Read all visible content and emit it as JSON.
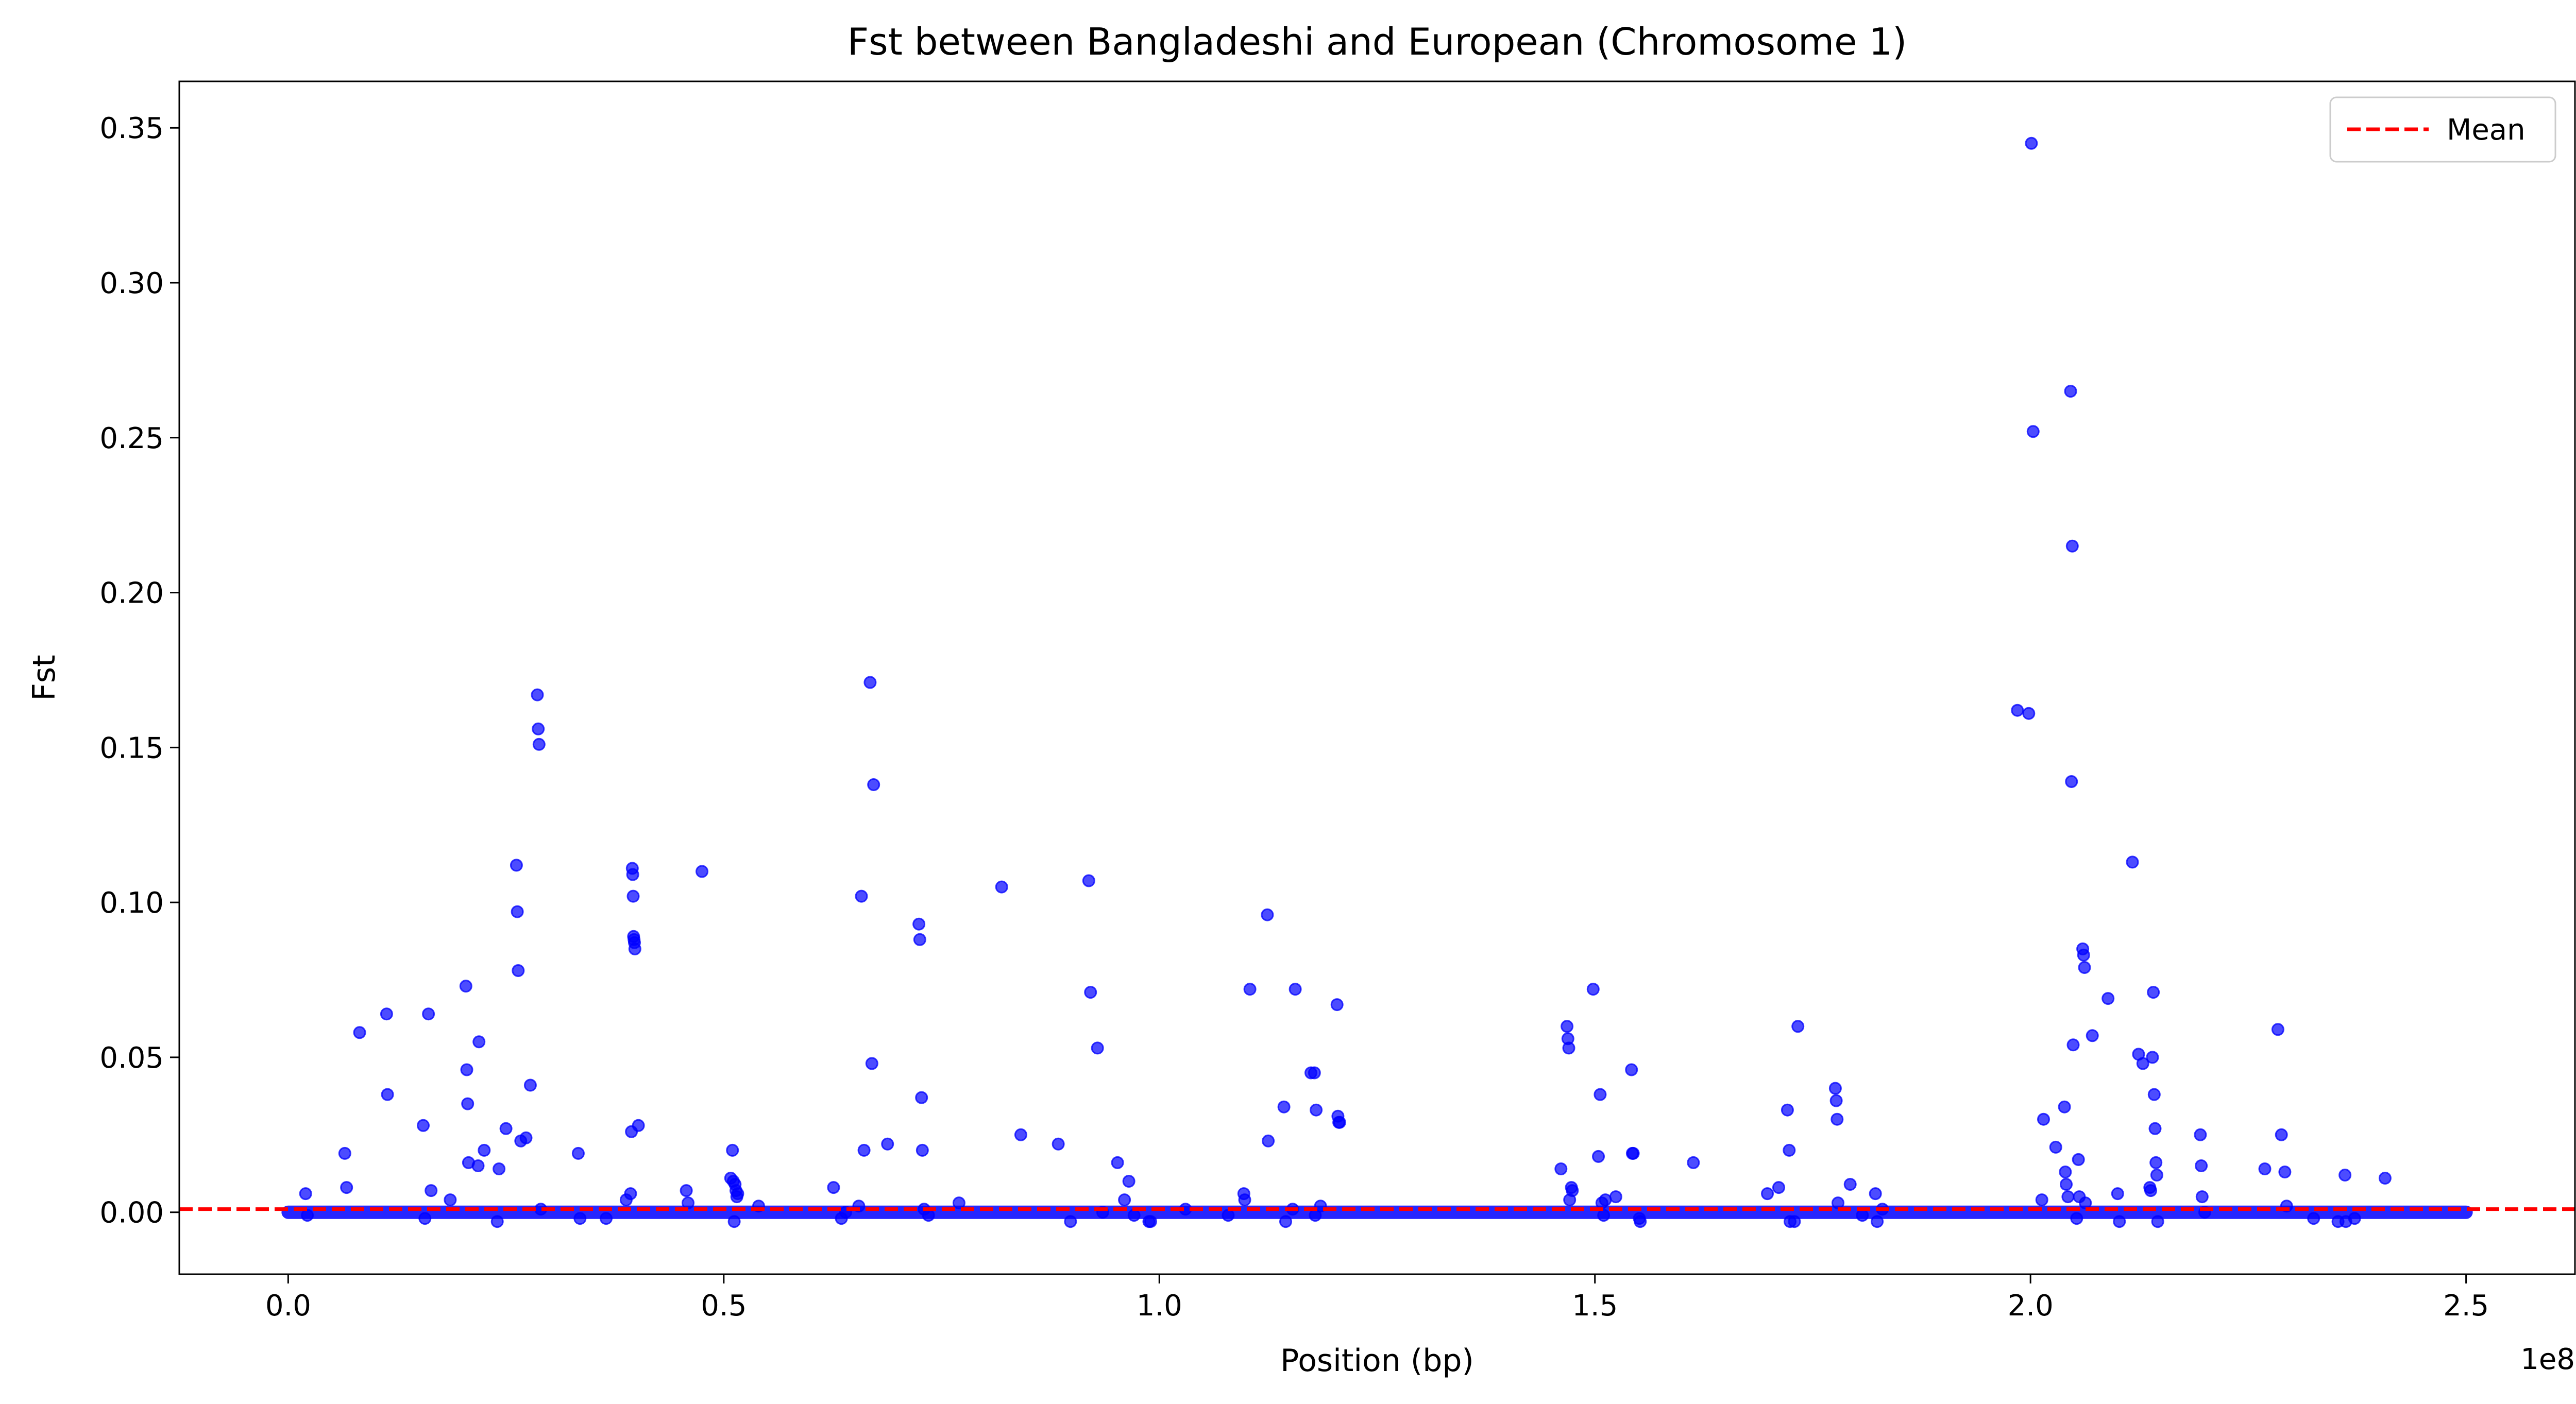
{
  "chart_data": {
    "type": "scatter",
    "title": "Fst between Bangladeshi and European (Chromosome 1)",
    "xlabel": "Position (bp)",
    "ylabel": "Fst",
    "x_offset_label": "1e8",
    "xlim": [
      -12500000,
      262500000
    ],
    "ylim": [
      -0.02,
      0.365
    ],
    "x_ticks": [
      0,
      50000000,
      100000000,
      150000000,
      200000000,
      250000000
    ],
    "x_tick_labels": [
      "0.0",
      "0.5",
      "1.0",
      "1.5",
      "2.0",
      "2.5"
    ],
    "y_ticks": [
      0.0,
      0.05,
      0.1,
      0.15,
      0.2,
      0.25,
      0.3,
      0.35
    ],
    "y_tick_labels": [
      "0.00",
      "0.05",
      "0.10",
      "0.15",
      "0.20",
      "0.25",
      "0.30",
      "0.35"
    ],
    "grid": false,
    "legend": {
      "placement": "top-right",
      "entries": [
        {
          "label": "Mean",
          "style": "dashed-line",
          "color": "#ff0000"
        }
      ]
    },
    "mean_line": {
      "y": 0.001,
      "color": "#ff0000",
      "style": "dashed"
    },
    "baseline_band": {
      "x_start": 0,
      "x_end": 250000000,
      "y": 0.0
    },
    "series": [
      {
        "color": "#0000ff",
        "points": [
          [
            2000000,
            0.006
          ],
          [
            2200000,
            -0.001
          ],
          [
            6500000,
            0.019
          ],
          [
            6700000,
            0.008
          ],
          [
            8200000,
            0.058
          ],
          [
            11300000,
            0.064
          ],
          [
            11400000,
            0.038
          ],
          [
            15500000,
            0.028
          ],
          [
            15700000,
            -0.002
          ],
          [
            16100000,
            0.064
          ],
          [
            16400000,
            0.007
          ],
          [
            18600000,
            0.004
          ],
          [
            20400000,
            0.073
          ],
          [
            20500000,
            0.046
          ],
          [
            20600000,
            0.035
          ],
          [
            20700000,
            0.016
          ],
          [
            21800000,
            0.015
          ],
          [
            21900000,
            0.055
          ],
          [
            22500000,
            0.02
          ],
          [
            24000000,
            -0.003
          ],
          [
            24200000,
            0.014
          ],
          [
            25000000,
            0.027
          ],
          [
            26200000,
            0.112
          ],
          [
            26300000,
            0.097
          ],
          [
            26400000,
            0.078
          ],
          [
            26700000,
            0.023
          ],
          [
            27300000,
            0.024
          ],
          [
            27800000,
            0.041
          ],
          [
            28600000,
            0.167
          ],
          [
            28700000,
            0.156
          ],
          [
            28800000,
            0.151
          ],
          [
            29000000,
            0.001
          ],
          [
            33300000,
            0.019
          ],
          [
            33500000,
            -0.002
          ],
          [
            36500000,
            -0.002
          ],
          [
            38800000,
            0.004
          ],
          [
            39300000,
            0.006
          ],
          [
            39400000,
            0.026
          ],
          [
            39500000,
            0.111
          ],
          [
            39550000,
            0.109
          ],
          [
            39600000,
            0.102
          ],
          [
            39650000,
            0.089
          ],
          [
            39700000,
            0.088
          ],
          [
            39750000,
            0.087
          ],
          [
            39800000,
            0.085
          ],
          [
            40200000,
            0.028
          ],
          [
            45700000,
            0.007
          ],
          [
            45900000,
            0.003
          ],
          [
            47500000,
            0.11
          ],
          [
            50800000,
            0.011
          ],
          [
            51000000,
            0.02
          ],
          [
            51100000,
            0.01
          ],
          [
            51200000,
            -0.003
          ],
          [
            51300000,
            0.009
          ],
          [
            51400000,
            0.007
          ],
          [
            51500000,
            0.005
          ],
          [
            51600000,
            0.006
          ],
          [
            54000000,
            0.002
          ],
          [
            62600000,
            0.008
          ],
          [
            63500000,
            -0.002
          ],
          [
            64000000,
            0.0
          ],
          [
            65500000,
            0.002
          ],
          [
            65800000,
            0.102
          ],
          [
            66100000,
            0.02
          ],
          [
            66800000,
            0.171
          ],
          [
            67000000,
            0.048
          ],
          [
            67200000,
            0.138
          ],
          [
            68800000,
            0.022
          ],
          [
            72400000,
            0.093
          ],
          [
            72500000,
            0.088
          ],
          [
            72700000,
            0.037
          ],
          [
            72800000,
            0.02
          ],
          [
            73000000,
            0.001
          ],
          [
            73500000,
            -0.001
          ],
          [
            77000000,
            0.003
          ],
          [
            81900000,
            0.105
          ],
          [
            84100000,
            0.025
          ],
          [
            88400000,
            0.022
          ],
          [
            89800000,
            -0.003
          ],
          [
            91900000,
            0.107
          ],
          [
            92100000,
            0.071
          ],
          [
            92900000,
            0.053
          ],
          [
            93500000,
            0.0
          ],
          [
            95200000,
            0.016
          ],
          [
            96000000,
            0.004
          ],
          [
            96500000,
            0.01
          ],
          [
            97100000,
            -0.001
          ],
          [
            98800000,
            -0.003
          ],
          [
            99000000,
            -0.003
          ],
          [
            103000000,
            0.001
          ],
          [
            107900000,
            -0.001
          ],
          [
            109700000,
            0.006
          ],
          [
            109800000,
            0.004
          ],
          [
            110400000,
            0.072
          ],
          [
            112400000,
            0.096
          ],
          [
            112500000,
            0.023
          ],
          [
            114300000,
            0.034
          ],
          [
            114500000,
            -0.003
          ],
          [
            115300000,
            0.001
          ],
          [
            115600000,
            0.072
          ],
          [
            117400000,
            0.045
          ],
          [
            117800000,
            0.045
          ],
          [
            117900000,
            -0.001
          ],
          [
            118000000,
            0.033
          ],
          [
            118500000,
            0.002
          ],
          [
            120400000,
            0.067
          ],
          [
            120500000,
            0.031
          ],
          [
            120600000,
            0.029
          ],
          [
            120700000,
            0.029
          ],
          [
            146100000,
            0.014
          ],
          [
            146800000,
            0.06
          ],
          [
            146900000,
            0.056
          ],
          [
            147000000,
            0.053
          ],
          [
            147100000,
            0.004
          ],
          [
            147300000,
            0.008
          ],
          [
            147400000,
            0.007
          ],
          [
            149800000,
            0.072
          ],
          [
            150400000,
            0.018
          ],
          [
            150600000,
            0.038
          ],
          [
            150800000,
            0.003
          ],
          [
            151000000,
            -0.001
          ],
          [
            151200000,
            0.004
          ],
          [
            152400000,
            0.005
          ],
          [
            154200000,
            0.046
          ],
          [
            154300000,
            0.019
          ],
          [
            154400000,
            0.019
          ],
          [
            155100000,
            -0.002
          ],
          [
            155200000,
            -0.003
          ],
          [
            161300000,
            0.016
          ],
          [
            169800000,
            0.006
          ],
          [
            171100000,
            0.008
          ],
          [
            172100000,
            0.033
          ],
          [
            172300000,
            0.02
          ],
          [
            172400000,
            -0.003
          ],
          [
            172900000,
            -0.003
          ],
          [
            173300000,
            0.06
          ],
          [
            177600000,
            0.04
          ],
          [
            177700000,
            0.036
          ],
          [
            177800000,
            0.03
          ],
          [
            177900000,
            0.003
          ],
          [
            179300000,
            0.009
          ],
          [
            180700000,
            -0.001
          ],
          [
            182200000,
            0.006
          ],
          [
            182400000,
            -0.003
          ],
          [
            183000000,
            0.001
          ],
          [
            198500000,
            0.162
          ],
          [
            199800000,
            0.161
          ],
          [
            200100000,
            0.345
          ],
          [
            200300000,
            0.252
          ],
          [
            201300000,
            0.004
          ],
          [
            201500000,
            0.03
          ],
          [
            202900000,
            0.021
          ],
          [
            203900000,
            0.034
          ],
          [
            204000000,
            0.013
          ],
          [
            204100000,
            0.009
          ],
          [
            204300000,
            0.005
          ],
          [
            204600000,
            0.265
          ],
          [
            204700000,
            0.139
          ],
          [
            204800000,
            0.215
          ],
          [
            204900000,
            0.054
          ],
          [
            205300000,
            -0.002
          ],
          [
            205500000,
            0.017
          ],
          [
            205600000,
            0.005
          ],
          [
            206000000,
            0.085
          ],
          [
            206100000,
            0.083
          ],
          [
            206200000,
            0.079
          ],
          [
            206300000,
            0.003
          ],
          [
            207100000,
            0.057
          ],
          [
            208900000,
            0.069
          ],
          [
            210000000,
            0.006
          ],
          [
            210200000,
            -0.003
          ],
          [
            211700000,
            0.113
          ],
          [
            212400000,
            0.051
          ],
          [
            212900000,
            0.048
          ],
          [
            213700000,
            0.008
          ],
          [
            213800000,
            0.007
          ],
          [
            214000000,
            0.05
          ],
          [
            214100000,
            0.071
          ],
          [
            214200000,
            0.038
          ],
          [
            214300000,
            0.027
          ],
          [
            214400000,
            0.016
          ],
          [
            214500000,
            0.012
          ],
          [
            214600000,
            -0.003
          ],
          [
            219500000,
            0.025
          ],
          [
            219600000,
            0.015
          ],
          [
            219700000,
            0.005
          ],
          [
            220000000,
            0.0
          ],
          [
            226900000,
            0.014
          ],
          [
            228400000,
            0.059
          ],
          [
            228800000,
            0.025
          ],
          [
            229200000,
            0.013
          ],
          [
            229400000,
            0.002
          ],
          [
            232500000,
            -0.002
          ],
          [
            235300000,
            -0.003
          ],
          [
            236100000,
            0.012
          ],
          [
            236200000,
            -0.003
          ],
          [
            237200000,
            -0.002
          ],
          [
            240700000,
            0.011
          ]
        ]
      }
    ]
  }
}
